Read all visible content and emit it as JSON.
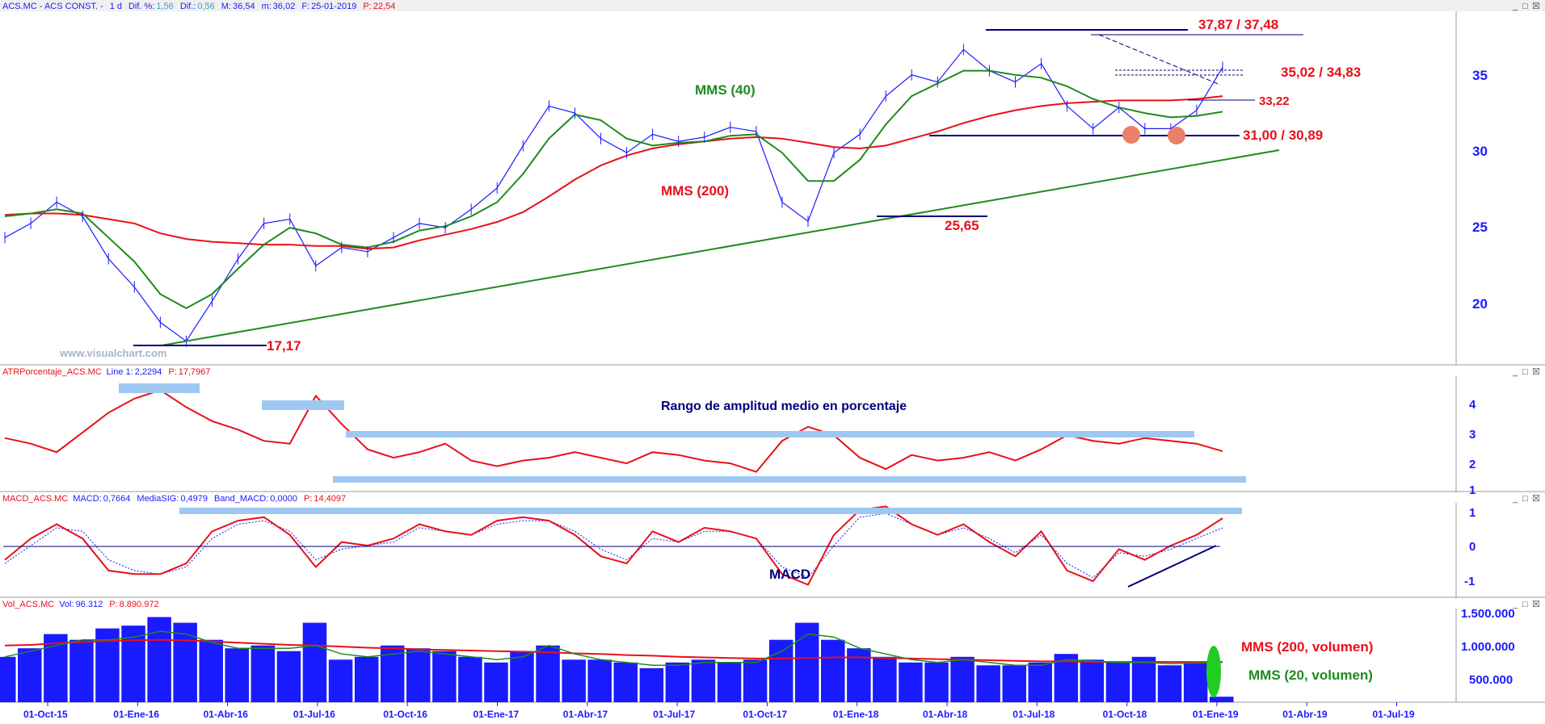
{
  "panels": {
    "price": {
      "header": {
        "symbol": "ACS.MC - ACS CONST. -",
        "interval": "1 d",
        "dif_pct_label": "Dif. %:",
        "dif_pct": "1,56",
        "dif_label": "Dif.:",
        "dif": "0,56",
        "max_label": "M:",
        "max": "36,54",
        "min_label": "m:",
        "min": "36,02",
        "fecha_label": "F:",
        "fecha": "25-01-2019",
        "p_label": "P:",
        "p": "22,54"
      },
      "watermark": "www.visualchart.com",
      "y_ticks": [
        "35",
        "30",
        "25",
        "20"
      ],
      "annotations": {
        "resistance": "37,87 / 37,48",
        "level_2": "35,02 / 34,83",
        "level_3": "33,22",
        "support": "31,00 / 30,89",
        "low_2018": "25,65",
        "low_2016": "17,17",
        "mms40": "MMS (40)",
        "mms200": "MMS (200)"
      },
      "colors": {
        "price": "#1a1aff",
        "mms40": "#1f8a1f",
        "mms200": "#e8101a",
        "trendline": "#1f8a1f",
        "level_line": "#00007a",
        "annotation_text": "#e8101a",
        "double_bottom_marker": "#e8806a"
      }
    },
    "atr": {
      "header": {
        "name": "ATRPorcentaje_ACS.MC",
        "line_label": "Line 1:",
        "line": "2,2294",
        "p_label": "P:",
        "p": "17,7967"
      },
      "title": "Rango de amplitud medio en porcentaje",
      "y_ticks": [
        "4",
        "3",
        "2",
        "1"
      ]
    },
    "macd": {
      "header": {
        "name": "MACD_ACS.MC",
        "macd_label": "MACD:",
        "macd": "0,7664",
        "sig_label": "MediaSIG:",
        "sig": "0,4979",
        "band_label": "Band_MACD:",
        "band": "0,0000",
        "p_label": "P:",
        "p": "14,4097"
      },
      "title": "MACD",
      "y_ticks": [
        "1",
        "0",
        "-1"
      ]
    },
    "volume": {
      "header": {
        "name": "Vol_ACS.MC",
        "vol_label": "Vol:",
        "vol": "96.312",
        "p_label": "P:",
        "p": "8.890.972"
      },
      "y_ticks": [
        "1.500.000",
        "1.000.000",
        "500.000"
      ],
      "mms200_label": "MMS (200, volumen)",
      "mms20_label": "MMS (20, volumen)"
    }
  },
  "window_controls": {
    "minimize": "_",
    "restore": "□",
    "close": "☒"
  },
  "chart_data": [
    {
      "type": "line",
      "name": "price",
      "x_ticks": [
        "01-Oct-15",
        "01-Ene-16",
        "01-Abr-16",
        "01-Jul-16",
        "01-Oct-16",
        "01-Ene-17",
        "01-Abr-17",
        "01-Jul-17",
        "01-Oct-17",
        "01-Ene-18",
        "01-Abr-18",
        "01-Jul-18",
        "01-Oct-18",
        "01-Ene-19",
        "01-Abr-19",
        "01-Jul-19"
      ],
      "ylim": [
        15.5,
        40.5
      ],
      "x": [
        "01-Sep-15",
        "01-Oct-15",
        "01-Nov-15",
        "01-Dic-15",
        "15-Dic-15",
        "01-Ene-16",
        "01-Feb-16",
        "15-Feb-16",
        "01-Mar-16",
        "01-Abr-16",
        "01-May-16",
        "01-Jun-16",
        "01-Jul-16",
        "01-Ago-16",
        "01-Sep-16",
        "01-Oct-16",
        "01-Nov-16",
        "01-Dic-16",
        "01-Ene-17",
        "01-Feb-17",
        "01-Mar-17",
        "01-Abr-17",
        "01-May-17",
        "01-Jun-17",
        "01-Jul-17",
        "01-Ago-17",
        "01-Sep-17",
        "01-Oct-17",
        "01-Nov-17",
        "01-Dic-17",
        "01-Ene-18",
        "01-Feb-18",
        "01-Mar-18",
        "15-Mar-18",
        "01-Abr-18",
        "01-May-18",
        "01-Jun-18",
        "01-Jul-18",
        "01-Ago-18",
        "01-Sep-18",
        "01-Oct-18",
        "15-Oct-18",
        "01-Nov-18",
        "15-Nov-18",
        "01-Dic-18",
        "15-Dic-18",
        "01-Ene-19",
        "25-Ene-19"
      ],
      "series": [
        {
          "name": "",
          "values": [
            24.5,
            25.5,
            27,
            26,
            23,
            21,
            18.5,
            17.17,
            20,
            23,
            25.5,
            25.8,
            22.5,
            23.8,
            23.5,
            24.5,
            25.5,
            25.2,
            26.5,
            28,
            31,
            33.8,
            33.3,
            31.5,
            30.5,
            31.8,
            31.3,
            31.6,
            32.3,
            32,
            27,
            25.65,
            30.5,
            31.8,
            34.5,
            36,
            35.5,
            37.8,
            36.3,
            35.5,
            36.8,
            33.8,
            32.2,
            33.7,
            32.2,
            32.2,
            33.5,
            36.54
          ]
        },
        {
          "name": "MMS (40)",
          "values": [
            26,
            26.2,
            26.5,
            26.2,
            24.5,
            22.8,
            20.5,
            19.5,
            20.5,
            22.3,
            24,
            25.2,
            24.8,
            24,
            23.8,
            24.2,
            25,
            25.3,
            26,
            27,
            29,
            31.5,
            33.2,
            32.8,
            31.5,
            31,
            31.2,
            31.3,
            31.7,
            31.8,
            30.5,
            28.5,
            28.5,
            30,
            32.5,
            34.5,
            35.4,
            36.3,
            36.3,
            36,
            35.8,
            35.2,
            34.3,
            33.7,
            33.3,
            33,
            33.1,
            33.4
          ]
        },
        {
          "name": "MMS (200)",
          "values": [
            26.1,
            26.2,
            26.2,
            26.1,
            25.8,
            25.5,
            24.8,
            24.4,
            24.2,
            24.1,
            24,
            24,
            23.9,
            23.9,
            23.7,
            23.8,
            24.3,
            24.7,
            25.1,
            25.6,
            26.3,
            27.4,
            28.6,
            29.6,
            30.3,
            30.8,
            31.1,
            31.3,
            31.5,
            31.6,
            31.5,
            31.2,
            30.9,
            30.8,
            31,
            31.5,
            32,
            32.6,
            33.1,
            33.5,
            33.8,
            34,
            34.1,
            34.2,
            34.2,
            34.2,
            34.3,
            34.5
          ]
        }
      ]
    },
    {
      "type": "line",
      "name": "ATRPorcentaje_ACS.MC",
      "ylim": [
        0.8,
        4.9
      ],
      "series": [
        {
          "name": "Line 1",
          "values": [
            2.7,
            2.5,
            2.2,
            2.9,
            3.6,
            4.1,
            4.4,
            3.8,
            3.3,
            3.0,
            2.6,
            2.5,
            4.2,
            3.2,
            2.3,
            2.0,
            2.2,
            2.5,
            1.9,
            1.7,
            1.9,
            2.0,
            2.2,
            2.0,
            1.8,
            2.2,
            2.1,
            1.9,
            1.8,
            1.5,
            2.6,
            3.1,
            2.8,
            2.0,
            1.6,
            2.1,
            1.9,
            2.0,
            2.2,
            1.9,
            2.3,
            2.8,
            2.6,
            2.5,
            2.7,
            2.6,
            2.5,
            2.2294
          ]
        }
      ]
    },
    {
      "type": "line",
      "name": "MACD_ACS.MC",
      "ylim": [
        -1.45,
        1.2
      ],
      "series": [
        {
          "name": "MACD",
          "values": [
            -0.4,
            0.2,
            0.6,
            0.2,
            -0.7,
            -0.8,
            -0.8,
            -0.5,
            0.4,
            0.7,
            0.8,
            0.3,
            -0.6,
            0.1,
            0.0,
            0.2,
            0.6,
            0.4,
            0.3,
            0.7,
            0.8,
            0.7,
            0.3,
            -0.3,
            -0.5,
            0.4,
            0.1,
            0.5,
            0.4,
            0.2,
            -0.8,
            -1.1,
            0.3,
            1.0,
            1.1,
            0.6,
            0.3,
            0.6,
            0.1,
            -0.3,
            0.4,
            -0.7,
            -1.0,
            -0.1,
            -0.4,
            0.0,
            0.3,
            0.7664
          ]
        },
        {
          "name": "MediaSIG",
          "values": [
            -0.5,
            0.0,
            0.5,
            0.4,
            -0.4,
            -0.7,
            -0.8,
            -0.6,
            0.2,
            0.6,
            0.7,
            0.4,
            -0.4,
            -0.1,
            0.0,
            0.1,
            0.5,
            0.4,
            0.3,
            0.6,
            0.7,
            0.7,
            0.4,
            -0.1,
            -0.4,
            0.2,
            0.1,
            0.4,
            0.4,
            0.2,
            -0.6,
            -0.9,
            0.0,
            0.8,
            0.9,
            0.6,
            0.3,
            0.5,
            0.2,
            -0.2,
            0.3,
            -0.5,
            -0.9,
            -0.2,
            -0.3,
            -0.1,
            0.2,
            0.4979
          ]
        }
      ]
    },
    {
      "type": "bar",
      "name": "Vol_ACS.MC",
      "ylim": [
        0,
        1650000
      ],
      "series": [
        {
          "name": "Vol",
          "values": [
            800000,
            950000,
            1200000,
            1100000,
            1300000,
            1350000,
            1500000,
            1400000,
            1100000,
            950000,
            1000000,
            900000,
            1400000,
            750000,
            800000,
            1000000,
            950000,
            900000,
            800000,
            700000,
            900000,
            1000000,
            750000,
            750000,
            700000,
            600000,
            700000,
            750000,
            700000,
            750000,
            1100000,
            1400000,
            1100000,
            950000,
            800000,
            700000,
            700000,
            800000,
            650000,
            650000,
            700000,
            850000,
            750000,
            700000,
            800000,
            650000,
            700000,
            96312
          ]
        },
        {
          "name": "MMS (200, volumen)",
          "values": [
            1000000,
            1010000,
            1040000,
            1060000,
            1080000,
            1090000,
            1100000,
            1090000,
            1070000,
            1050000,
            1030000,
            1010000,
            1000000,
            980000,
            960000,
            950000,
            930000,
            920000,
            910000,
            900000,
            890000,
            880000,
            860000,
            850000,
            830000,
            820000,
            800000,
            790000,
            780000,
            770000,
            770000,
            780000,
            790000,
            790000,
            780000,
            770000,
            760000,
            750000,
            740000,
            730000,
            720000,
            720000,
            710000,
            710000,
            710000,
            710000,
            710000,
            710000
          ]
        },
        {
          "name": "MMS (20, volumen)",
          "values": [
            800000,
            900000,
            1000000,
            1100000,
            1100000,
            1150000,
            1250000,
            1200000,
            1050000,
            950000,
            950000,
            950000,
            1000000,
            850000,
            800000,
            850000,
            900000,
            850000,
            800000,
            750000,
            800000,
            1000000,
            850000,
            750000,
            700000,
            650000,
            650000,
            700000,
            700000,
            700000,
            900000,
            1200000,
            1150000,
            950000,
            850000,
            750000,
            700000,
            750000,
            700000,
            650000,
            650000,
            750000,
            720000,
            700000,
            700000,
            680000,
            690000,
            700000
          ]
        }
      ]
    }
  ]
}
